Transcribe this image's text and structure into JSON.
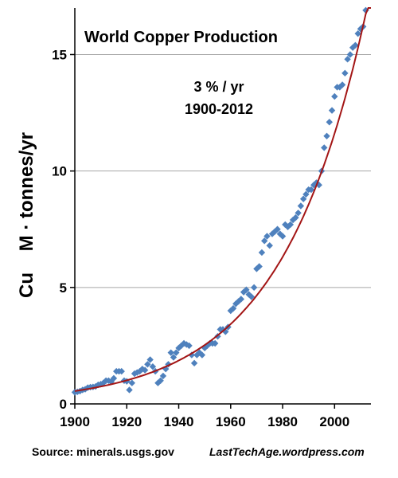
{
  "chart_data": {
    "type": "scatter",
    "title": "World Copper Production",
    "annotation_lines": [
      "3 % / yr",
      "1900-2012"
    ],
    "ylabel": "Cu    M · tonnes/yr",
    "xlabel": "",
    "xlim": [
      1900,
      2014
    ],
    "ylim": [
      0,
      17
    ],
    "xticks": [
      1900,
      1920,
      1940,
      1960,
      1980,
      2000
    ],
    "yticks": [
      0,
      5,
      10,
      15
    ],
    "grid": "horizontal",
    "legend": "none",
    "colors": {
      "points": "#4f81bd",
      "trend": "#a31515",
      "grid": "#a6a6a6",
      "axis": "#000000"
    },
    "series": [
      {
        "type": "scatter",
        "x": [
          1900,
          1901,
          1902,
          1903,
          1904,
          1905,
          1906,
          1907,
          1908,
          1909,
          1910,
          1911,
          1912,
          1913,
          1914,
          1915,
          1916,
          1917,
          1918,
          1919,
          1920,
          1921,
          1922,
          1923,
          1924,
          1925,
          1926,
          1927,
          1928,
          1929,
          1930,
          1931,
          1932,
          1933,
          1934,
          1935,
          1936,
          1937,
          1938,
          1939,
          1940,
          1941,
          1942,
          1943,
          1944,
          1945,
          1946,
          1947,
          1948,
          1949,
          1950,
          1951,
          1952,
          1953,
          1954,
          1955,
          1956,
          1957,
          1958,
          1959,
          1960,
          1961,
          1962,
          1963,
          1964,
          1965,
          1966,
          1967,
          1968,
          1969,
          1970,
          1971,
          1972,
          1973,
          1974,
          1975,
          1976,
          1977,
          1978,
          1979,
          1980,
          1981,
          1982,
          1983,
          1984,
          1985,
          1986,
          1987,
          1988,
          1989,
          1990,
          1991,
          1992,
          1993,
          1994,
          1995,
          1996,
          1997,
          1998,
          1999,
          2000,
          2001,
          2002,
          2003,
          2004,
          2005,
          2006,
          2007,
          2008,
          2009,
          2010,
          2011,
          2012
        ],
        "y": [
          0.5,
          0.52,
          0.55,
          0.6,
          0.63,
          0.7,
          0.72,
          0.73,
          0.75,
          0.82,
          0.85,
          0.9,
          1.0,
          1.0,
          0.95,
          1.1,
          1.4,
          1.4,
          1.4,
          1.0,
          0.97,
          0.6,
          0.9,
          1.3,
          1.35,
          1.4,
          1.5,
          1.45,
          1.7,
          1.9,
          1.6,
          1.4,
          0.9,
          1.0,
          1.2,
          1.5,
          1.7,
          2.2,
          2.0,
          2.2,
          2.4,
          2.5,
          2.6,
          2.55,
          2.5,
          2.1,
          1.75,
          2.1,
          2.2,
          2.1,
          2.4,
          2.5,
          2.6,
          2.6,
          2.6,
          2.9,
          3.2,
          3.2,
          3.1,
          3.3,
          4.0,
          4.1,
          4.3,
          4.4,
          4.5,
          4.8,
          4.9,
          4.7,
          4.6,
          5.0,
          5.8,
          5.9,
          6.5,
          7.0,
          7.2,
          6.8,
          7.3,
          7.4,
          7.5,
          7.3,
          7.2,
          7.7,
          7.6,
          7.7,
          7.9,
          8.0,
          8.2,
          8.5,
          8.8,
          9.0,
          9.2,
          9.2,
          9.4,
          9.5,
          9.4,
          10.0,
          11.0,
          11.5,
          12.1,
          12.6,
          13.2,
          13.6,
          13.6,
          13.7,
          14.2,
          14.8,
          15.0,
          15.3,
          15.4,
          15.9,
          16.1,
          16.2,
          16.9
        ]
      },
      {
        "type": "line",
        "name": "",
        "model": "exponential",
        "y_at_1900": 0.55,
        "growth_rate": 0.0305,
        "x_range": [
          1900,
          2014
        ]
      }
    ]
  },
  "source_text": "Source: minerals.usgs.gov",
  "blog_text": "LastTechAge.wordpress.com"
}
